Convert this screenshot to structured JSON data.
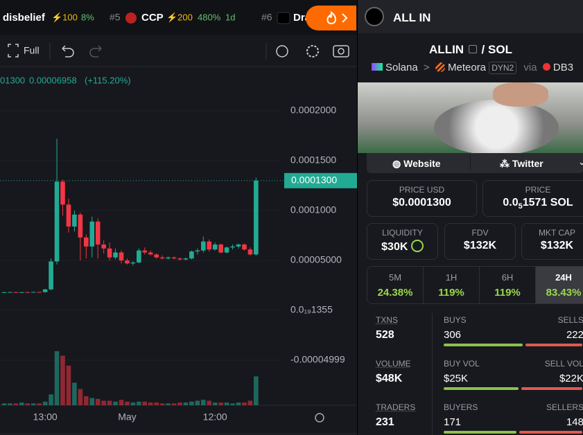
{
  "top_bar": {
    "items": [
      {
        "name": "disbelief",
        "stat": "⚡100",
        "change": "8%"
      },
      {
        "rank": "#5",
        "name": "CCP",
        "stat": "⚡200",
        "change": "480%",
        "age": "1d"
      },
      {
        "rank": "#6",
        "name": "Drag"
      }
    ]
  },
  "toolbar": {
    "full": "Full"
  },
  "chart": {
    "type": "candlestick",
    "header": {
      "close": "01300",
      "value": "0.00006958",
      "change": "(+115.20%)"
    },
    "ylim": [
      -9.51e-05,
      0.0002444
    ],
    "yticks": [
      {
        "value": 0.0002,
        "label": "0.0002000"
      },
      {
        "value": 0.00015,
        "label": "0.0001500"
      },
      {
        "value": 0.0001,
        "label": "0.0001000"
      },
      {
        "value": 5e-05,
        "label": "0.00005000"
      },
      {
        "value": 1.355e-20,
        "label": "0.0₁₉1355"
      },
      {
        "value": -4.999e-05,
        "label": "-0.00004999"
      }
    ],
    "last_price": {
      "value": 0.00013,
      "label": "0.0001300"
    },
    "volume_lim": [
      0,
      100
    ],
    "up_color": "#22ab94",
    "down_color": "#f23645",
    "categories": [
      null,
      null,
      null,
      null,
      null,
      null,
      null,
      "13:00",
      null,
      null,
      null,
      null,
      null,
      null,
      null,
      null,
      null,
      null,
      null,
      null,
      null,
      "May",
      null,
      null,
      null,
      null,
      null,
      null,
      null,
      null,
      null,
      null,
      null,
      null,
      null,
      null,
      "12:00",
      null,
      null,
      null,
      null,
      null,
      null,
      null
    ],
    "candles": [
      {
        "o": 1.81e-05,
        "h": 1.85e-05,
        "l": 1.78e-05,
        "c": 1.81e-05
      },
      {
        "o": 1.81e-05,
        "h": 1.86e-05,
        "l": 1.78e-05,
        "c": 1.83e-05
      },
      {
        "o": 1.83e-05,
        "h": 1.85e-05,
        "l": 1.79e-05,
        "c": 1.8e-05
      },
      {
        "o": 1.8e-05,
        "h": 1.84e-05,
        "l": 1.77e-05,
        "c": 1.82e-05
      },
      {
        "o": 1.82e-05,
        "h": 1.85e-05,
        "l": 1.79e-05,
        "c": 1.81e-05
      },
      {
        "o": 1.81e-05,
        "h": 1.86e-05,
        "l": 1.79e-05,
        "c": 1.84e-05
      },
      {
        "o": 1.84e-05,
        "h": 1.86e-05,
        "l": 1.8e-05,
        "c": 1.83e-05
      },
      {
        "o": 1.83e-05,
        "h": 2.15e-05,
        "l": 1.78e-05,
        "c": 2.1e-05
      },
      {
        "o": 2.1e-05,
        "h": 5.2e-05,
        "l": 2e-05,
        "c": 4.9e-05
      },
      {
        "o": 4.9e-05,
        "h": 0.000172,
        "l": 4.6e-05,
        "c": 0.000129
      },
      {
        "o": 0.000129,
        "h": 0.000131,
        "l": 9.5e-05,
        "c": 0.000106
      },
      {
        "o": 0.000106,
        "h": 0.000112,
        "l": 7.8e-05,
        "c": 8.4e-05
      },
      {
        "o": 8.4e-05,
        "h": 0.0001,
        "l": 7.9e-05,
        "c": 9.6e-05
      },
      {
        "o": 9.6e-05,
        "h": 9.8e-05,
        "l": 5e-05,
        "c": 7.3e-05
      },
      {
        "o": 7.3e-05,
        "h": 7.6e-05,
        "l": 5.2e-05,
        "c": 6.4e-05
      },
      {
        "o": 6.4e-05,
        "h": 9.4e-05,
        "l": 5.3e-05,
        "c": 8.9e-05
      },
      {
        "o": 8.9e-05,
        "h": 9.2e-05,
        "l": 5.2e-05,
        "c": 6.6e-05
      },
      {
        "o": 6.6e-05,
        "h": 7e-05,
        "l": 5.7e-05,
        "c": 6.2e-05
      },
      {
        "o": 6.2e-05,
        "h": 6.8e-05,
        "l": 5e-05,
        "c": 5.3e-05
      },
      {
        "o": 5.3e-05,
        "h": 6.2e-05,
        "l": 5.1e-05,
        "c": 5.8e-05
      },
      {
        "o": 5.8e-05,
        "h": 6e-05,
        "l": 4.7e-05,
        "c": 5e-05
      },
      {
        "o": 5e-05,
        "h": 5.2e-05,
        "l": 4.6e-05,
        "c": 4.7e-05
      },
      {
        "o": 4.7e-05,
        "h": 4.9e-05,
        "l": 4.5e-05,
        "c": 4.8e-05
      },
      {
        "o": 4.8e-05,
        "h": 6.2e-05,
        "l": 4.7e-05,
        "c": 6e-05
      },
      {
        "o": 6e-05,
        "h": 6.3e-05,
        "l": 5.6e-05,
        "c": 5.8e-05
      },
      {
        "o": 5.8e-05,
        "h": 6e-05,
        "l": 5.5e-05,
        "c": 5.6e-05
      },
      {
        "o": 5.6e-05,
        "h": 5.7e-05,
        "l": 5.2e-05,
        "c": 5.3e-05
      },
      {
        "o": 5.3e-05,
        "h": 5.5e-05,
        "l": 5.1e-05,
        "c": 5.2e-05
      },
      {
        "o": 5.2e-05,
        "h": 5.4e-05,
        "l": 5.1e-05,
        "c": 5.3e-05
      },
      {
        "o": 5.3e-05,
        "h": 5.4e-05,
        "l": 5.1e-05,
        "c": 5.2e-05
      },
      {
        "o": 5.2e-05,
        "h": 5.3e-05,
        "l": 5e-05,
        "c": 5.1e-05
      },
      {
        "o": 5.1e-05,
        "h": 5.3e-05,
        "l": 5e-05,
        "c": 5.2e-05
      },
      {
        "o": 5.2e-05,
        "h": 6e-05,
        "l": 5.1e-05,
        "c": 5.9e-05
      },
      {
        "o": 5.9e-05,
        "h": 6.2e-05,
        "l": 5.6e-05,
        "c": 6e-05
      },
      {
        "o": 6e-05,
        "h": 7.4e-05,
        "l": 5.8e-05,
        "c": 6.9e-05
      },
      {
        "o": 6.9e-05,
        "h": 7.1e-05,
        "l": 5.9e-05,
        "c": 6.1e-05
      },
      {
        "o": 6.1e-05,
        "h": 6.8e-05,
        "l": 6e-05,
        "c": 6.6e-05
      },
      {
        "o": 6.6e-05,
        "h": 6.7e-05,
        "l": 5.7e-05,
        "c": 5.8e-05
      },
      {
        "o": 5.8e-05,
        "h": 6.4e-05,
        "l": 5.7e-05,
        "c": 6.3e-05
      },
      {
        "o": 6.3e-05,
        "h": 6.6e-05,
        "l": 6.1e-05,
        "c": 6.4e-05
      },
      {
        "o": 6.4e-05,
        "h": 6.7e-05,
        "l": 6.2e-05,
        "c": 6.6e-05
      },
      {
        "o": 6.6e-05,
        "h": 6.7e-05,
        "l": 6e-05,
        "c": 6.1e-05
      },
      {
        "o": 6.1e-05,
        "h": 6.3e-05,
        "l": 5.5e-05,
        "c": 5.6e-05
      },
      {
        "o": 5.6e-05,
        "h": 0.000133,
        "l": 5.5e-05,
        "c": 0.00013
      }
    ],
    "volumes": [
      2,
      2,
      2,
      3,
      2,
      2,
      2,
      4,
      12,
      60,
      55,
      44,
      25,
      18,
      10,
      8,
      7,
      5,
      5,
      4,
      6,
      4,
      3,
      4,
      4,
      3,
      3,
      2,
      2,
      2,
      3,
      3,
      4,
      5,
      6,
      5,
      3,
      3,
      3,
      2,
      3,
      3,
      5,
      32
    ]
  },
  "token": {
    "header": "ALL IN",
    "base": "ALLIN",
    "slash": "/",
    "quote": "SOL",
    "chain": "Solana",
    "dex": "Meteora",
    "pool": "DYN2",
    "via": "via",
    "router": "DB3",
    "links": [
      "Website",
      "Twitter"
    ],
    "price_usd": {
      "label": "PRICE USD",
      "value": "$0.0001300"
    },
    "price": {
      "label": "PRICE",
      "prefix": "0.0",
      "zeros": "5",
      "digits": "1571 SOL"
    },
    "liquidity": {
      "label": "LIQUIDITY",
      "value": "$30K"
    },
    "fdv": {
      "label": "FDV",
      "value": "$132K"
    },
    "mkt_cap": {
      "label": "MKT CAP",
      "value": "$132K"
    },
    "timeframes": [
      {
        "label": "5M",
        "change": "24.38%"
      },
      {
        "label": "1H",
        "change": "119%"
      },
      {
        "label": "6H",
        "change": "119%"
      },
      {
        "label": "24H",
        "change": "83.43%"
      }
    ],
    "stats": {
      "txns": {
        "label": "TXNS",
        "value": 528
      },
      "buys": {
        "label": "BUYS",
        "value": 306
      },
      "sells": {
        "label": "SELLS",
        "value": 222
      },
      "volume": {
        "label": "VOLUME",
        "value": "$48K"
      },
      "buy_vol": {
        "label": "BUY VOL",
        "value": "$25K"
      },
      "sell_vol": {
        "label": "SELL VOL",
        "value": "$22K"
      },
      "traders": {
        "label": "TRADERS",
        "value": 231
      },
      "buyers": {
        "label": "BUYERS",
        "value": 171
      },
      "sellers": {
        "label": "SELLERS",
        "value": 148
      }
    }
  }
}
